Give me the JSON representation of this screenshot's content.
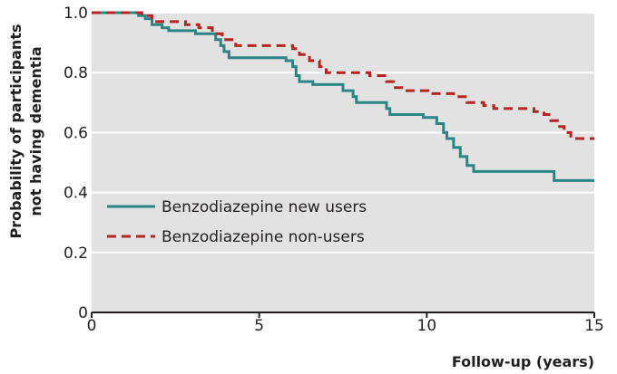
{
  "chart_data": {
    "type": "line",
    "title": "",
    "xlabel": "Follow-up (years)",
    "ylabel": [
      "Probability of participants",
      "not having dementia"
    ],
    "xlim": [
      0,
      15
    ],
    "ylim": [
      0,
      1.0
    ],
    "xticks": [
      0,
      5,
      10,
      15
    ],
    "xtick_labels": [
      "0",
      "5",
      "10",
      "15"
    ],
    "yticks": [
      0,
      0.2,
      0.4,
      0.6,
      0.8,
      1.0
    ],
    "ytick_labels": [
      "0",
      "0.2",
      "0.4",
      "0.6",
      "0.8",
      "1.0"
    ],
    "grid": true,
    "legend_position": "lower-left",
    "series": [
      {
        "name": "Benzodiazepine new users",
        "color": "#2b8586",
        "style": "solid",
        "step": true,
        "points": [
          [
            0,
            1.0
          ],
          [
            1.4,
            0.99
          ],
          [
            1.6,
            0.98
          ],
          [
            1.8,
            0.96
          ],
          [
            2.1,
            0.95
          ],
          [
            2.3,
            0.94
          ],
          [
            3.1,
            0.93
          ],
          [
            3.7,
            0.91
          ],
          [
            3.85,
            0.89
          ],
          [
            3.95,
            0.87
          ],
          [
            4.1,
            0.85
          ],
          [
            5.8,
            0.84
          ],
          [
            6.0,
            0.82
          ],
          [
            6.1,
            0.79
          ],
          [
            6.2,
            0.77
          ],
          [
            6.6,
            0.76
          ],
          [
            7.5,
            0.74
          ],
          [
            7.8,
            0.72
          ],
          [
            7.9,
            0.7
          ],
          [
            8.8,
            0.68
          ],
          [
            8.9,
            0.66
          ],
          [
            9.9,
            0.65
          ],
          [
            10.3,
            0.63
          ],
          [
            10.5,
            0.6
          ],
          [
            10.6,
            0.58
          ],
          [
            10.8,
            0.55
          ],
          [
            11.0,
            0.52
          ],
          [
            11.2,
            0.49
          ],
          [
            11.4,
            0.47
          ],
          [
            13.8,
            0.44
          ],
          [
            15,
            0.44
          ]
        ]
      },
      {
        "name": "Benzodiazepine non-users",
        "color": "#b72424",
        "style": "dashed",
        "step": true,
        "points": [
          [
            0,
            1.0
          ],
          [
            1.5,
            0.99
          ],
          [
            1.8,
            0.97
          ],
          [
            2.8,
            0.96
          ],
          [
            3.2,
            0.95
          ],
          [
            3.6,
            0.93
          ],
          [
            3.9,
            0.91
          ],
          [
            4.3,
            0.89
          ],
          [
            6.0,
            0.88
          ],
          [
            6.2,
            0.86
          ],
          [
            6.5,
            0.84
          ],
          [
            6.8,
            0.82
          ],
          [
            7.0,
            0.8
          ],
          [
            8.3,
            0.79
          ],
          [
            8.8,
            0.77
          ],
          [
            9.0,
            0.75
          ],
          [
            9.3,
            0.74
          ],
          [
            10.1,
            0.73
          ],
          [
            10.8,
            0.72
          ],
          [
            11.2,
            0.7
          ],
          [
            11.7,
            0.69
          ],
          [
            12.0,
            0.68
          ],
          [
            13.2,
            0.67
          ],
          [
            13.5,
            0.66
          ],
          [
            13.7,
            0.64
          ],
          [
            13.9,
            0.62
          ],
          [
            14.1,
            0.6
          ],
          [
            14.3,
            0.58
          ],
          [
            15,
            0.58
          ]
        ]
      }
    ]
  },
  "colors": {
    "plot_background": "#e2e2e2",
    "gridline": "#ffffff",
    "axis": "#231f20"
  }
}
